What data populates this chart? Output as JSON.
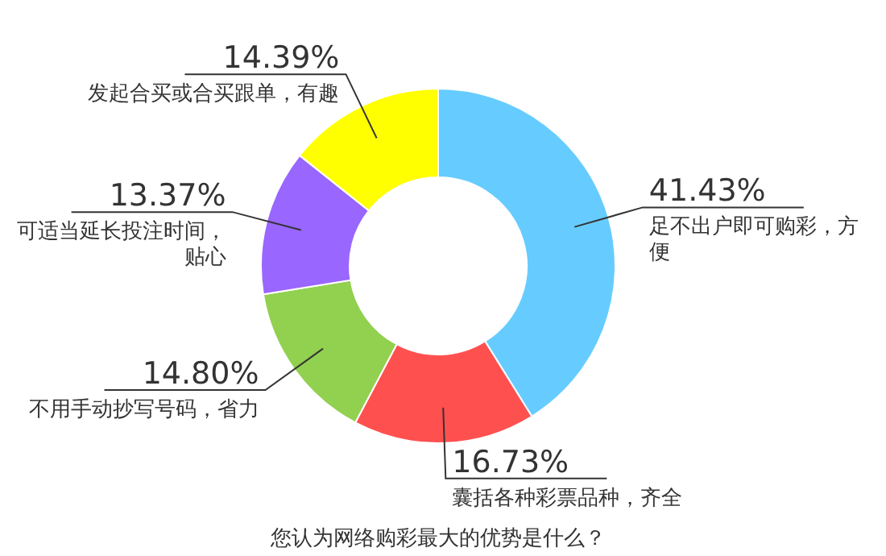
{
  "chart_data": {
    "type": "donut",
    "title": "您认为网络购彩最大的优势是什么？",
    "categories": [
      "足不出户即可购彩，方便",
      "囊括各种彩票品种，齐全",
      "不用手动抄写号码，省力",
      "可适当延长投注时间，贴心",
      "发起合买或合买跟单，有趣"
    ],
    "values": [
      41.43,
      16.73,
      14.8,
      13.37,
      14.39
    ],
    "value_labels": [
      "41.43%",
      "16.73%",
      "14.80%",
      "13.37%",
      "14.39%"
    ],
    "colors": [
      "#66ccff",
      "#ff5050",
      "#92d050",
      "#9966ff",
      "#ffff00"
    ]
  }
}
